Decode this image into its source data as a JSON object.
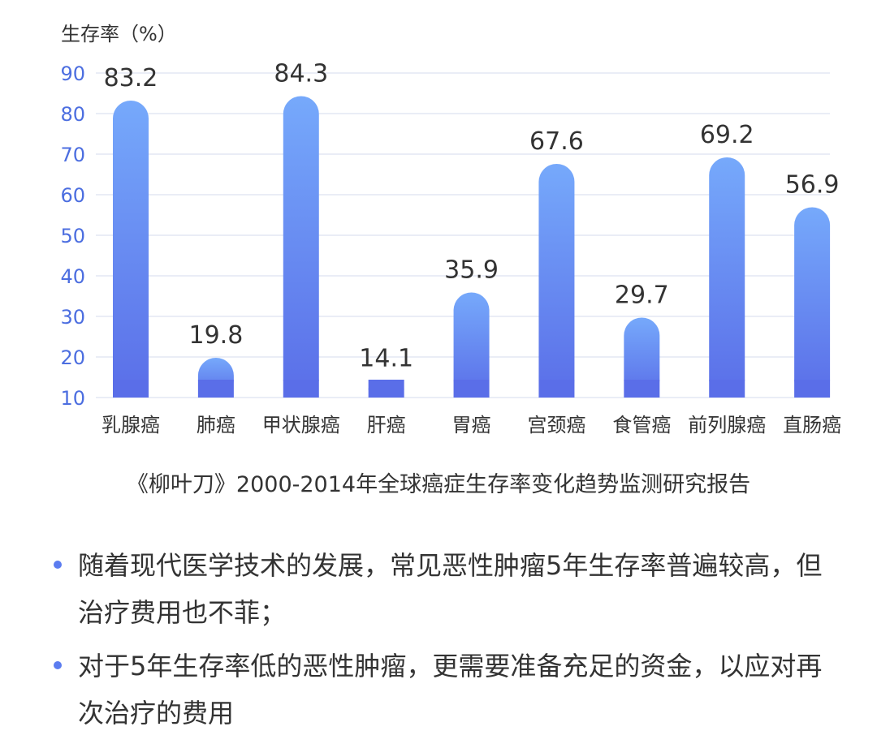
{
  "chart_data": {
    "type": "bar",
    "ylabel": "生存率（%）",
    "categories": [
      "乳腺癌",
      "肺癌",
      "甲状腺癌",
      "肝癌",
      "胃癌",
      "宫颈癌",
      "食管癌",
      "前列腺癌",
      "直肠癌"
    ],
    "values": [
      83.2,
      19.8,
      84.3,
      14.1,
      35.9,
      67.6,
      29.7,
      69.2,
      56.9
    ],
    "value_labels": [
      "83.2",
      "19.8",
      "84.3",
      "14.1",
      "35.9",
      "67.6",
      "29.7",
      "69.2",
      "56.9"
    ],
    "yticks": [
      "10",
      "20",
      "30",
      "40",
      "50",
      "60",
      "70",
      "80",
      "90"
    ],
    "ylim": [
      10,
      90
    ],
    "grid": true,
    "colors": {
      "bar_top": "#76a9fb",
      "bar_bottom": "#5a6ee8",
      "grid": "#e3e7f3"
    }
  },
  "source": "《柳叶刀》2000-2014年全球癌症生存率变化趋势监测研究报告",
  "notes": [
    "随着现代医学技术的发展，常见恶性肿瘤5年生存率普遍较高，但治疗费用也不菲；",
    "对于5年生存率低的恶性肿瘤，更需要准备充足的资金，以应对再次治疗的费用"
  ]
}
